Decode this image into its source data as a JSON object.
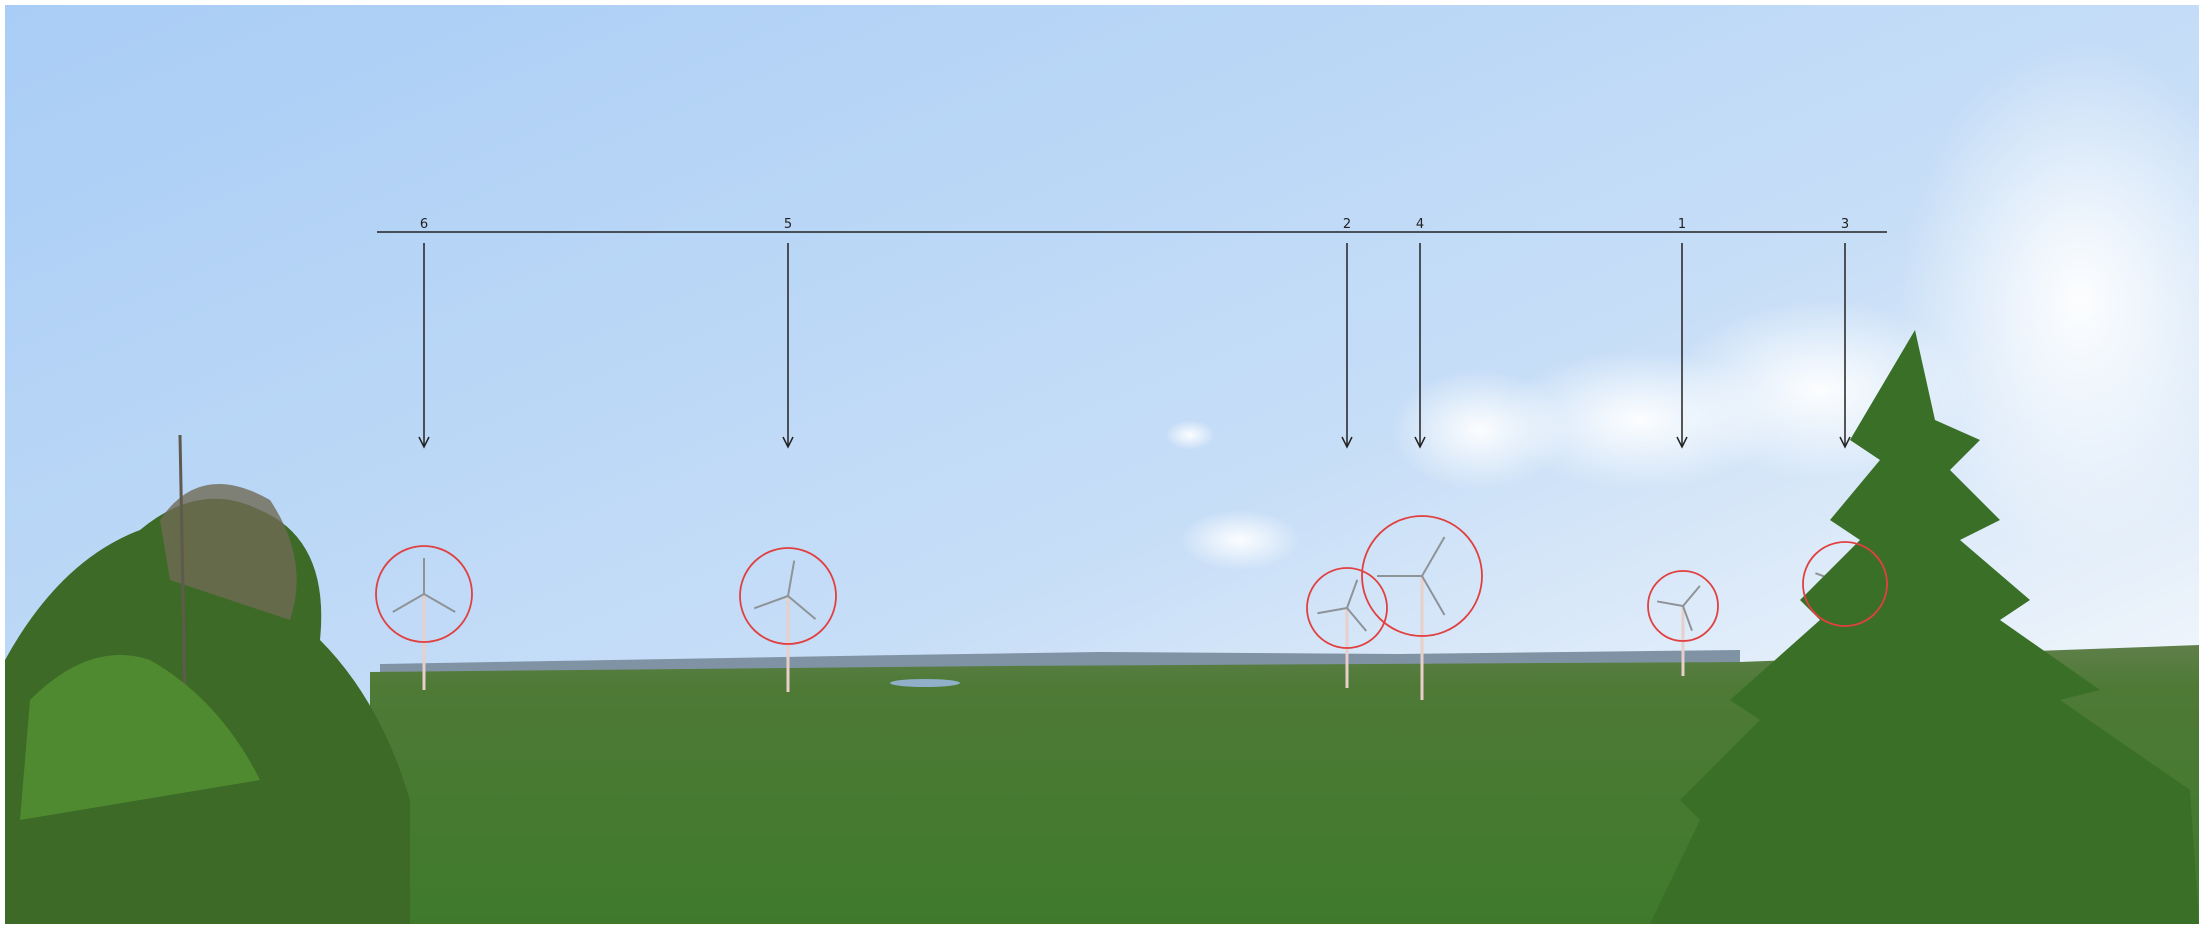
{
  "markers": [
    {
      "label": "6"
    },
    {
      "label": "5"
    },
    {
      "label": "2"
    },
    {
      "label": "4"
    },
    {
      "label": "1"
    },
    {
      "label": "3"
    }
  ]
}
